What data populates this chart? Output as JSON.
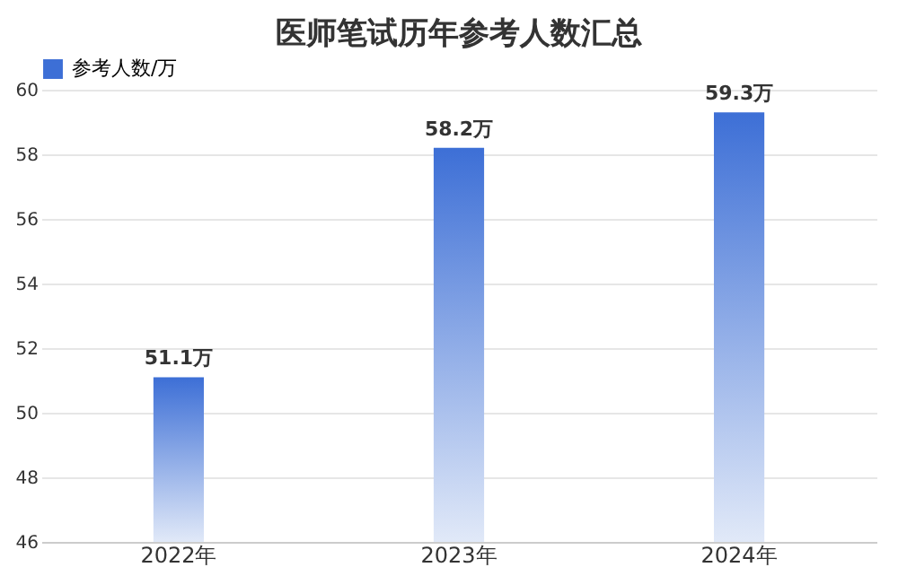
{
  "chart_data": {
    "type": "bar",
    "title": "医师笔试历年参考人数汇总",
    "categories": [
      "2022年",
      "2023年",
      "2024年"
    ],
    "series": [
      {
        "name": "参考人数/万",
        "color": "#3d6fd6",
        "values": [
          51.1,
          58.2,
          59.3
        ],
        "value_labels": [
          "51.1万",
          "58.2万",
          "59.3万"
        ]
      }
    ],
    "ylim": [
      46,
      60
    ],
    "yticks": [
      46,
      48,
      50,
      52,
      54,
      56,
      58,
      60
    ],
    "grid": "y",
    "legend": "top left"
  }
}
